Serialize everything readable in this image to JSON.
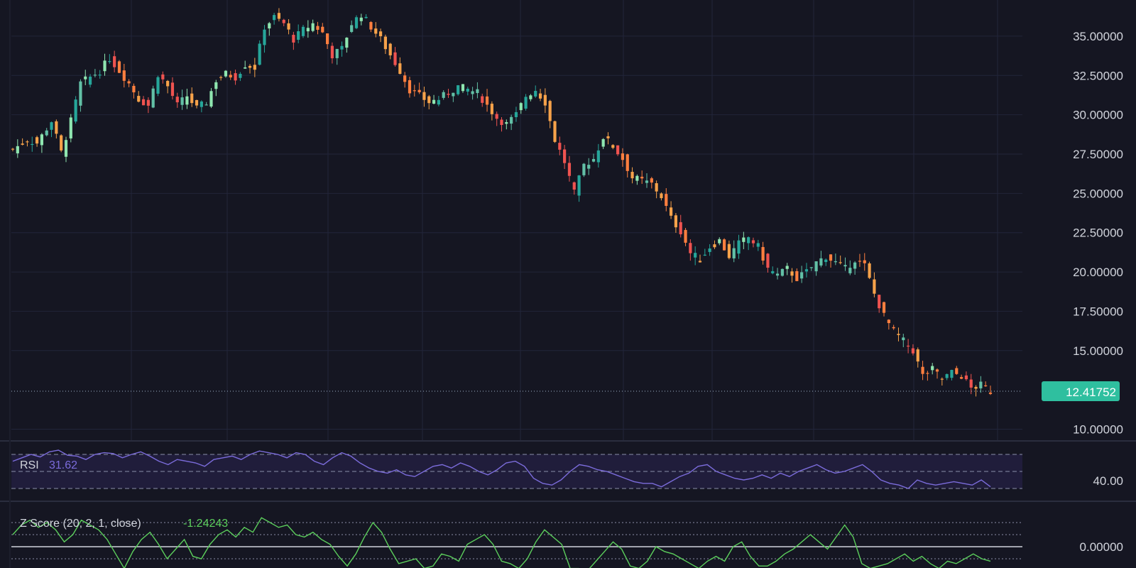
{
  "chart_data": [
    {
      "type": "candlestick",
      "title": "",
      "y_axis": {
        "ticks": [
          "10.00000",
          "15.00000",
          "17.50000",
          "20.00000",
          "22.50000",
          "25.00000",
          "27.50000",
          "30.00000",
          "32.50000",
          "35.00000"
        ],
        "range": [
          9.3,
          37.3
        ],
        "position": "right"
      },
      "last_price": "12.41752",
      "last_price_value": 12.41752,
      "grid": true,
      "colors": {
        "up": "#26a69a",
        "up_light": "#8fe6b0",
        "down": "#ff7f3f",
        "down_alt": "#ef5350",
        "wick": "#ff9966",
        "background": "#151622",
        "grid": "#22253a",
        "last_price_badge": "#2fbf9f"
      },
      "close_path": [
        [
          0,
          27.8
        ],
        [
          3,
          28.4
        ],
        [
          5,
          28.2
        ],
        [
          8,
          29.6
        ],
        [
          10,
          27.6
        ],
        [
          12,
          29.6
        ],
        [
          14,
          32.0
        ],
        [
          16,
          32.4
        ],
        [
          18,
          32.8
        ],
        [
          20,
          33.6
        ],
        [
          22,
          32.8
        ],
        [
          24,
          32.0
        ],
        [
          26,
          31.0
        ],
        [
          28,
          30.6
        ],
        [
          30,
          32.6
        ],
        [
          32,
          31.8
        ],
        [
          34,
          30.6
        ],
        [
          36,
          31.2
        ],
        [
          38,
          30.4
        ],
        [
          40,
          30.8
        ],
        [
          42,
          32.2
        ],
        [
          44,
          32.6
        ],
        [
          46,
          32.4
        ],
        [
          48,
          33.2
        ],
        [
          50,
          33.0
        ],
        [
          52,
          35.6
        ],
        [
          54,
          36.2
        ],
        [
          56,
          35.8
        ],
        [
          58,
          34.8
        ],
        [
          60,
          35.4
        ],
        [
          62,
          35.8
        ],
        [
          64,
          35.2
        ],
        [
          66,
          33.8
        ],
        [
          68,
          34.2
        ],
        [
          70,
          35.8
        ],
        [
          72,
          36.4
        ],
        [
          74,
          35.6
        ],
        [
          76,
          34.8
        ],
        [
          78,
          33.8
        ],
        [
          80,
          32.8
        ],
        [
          82,
          31.6
        ],
        [
          84,
          31.2
        ],
        [
          86,
          30.8
        ],
        [
          88,
          31.0
        ],
        [
          90,
          31.4
        ],
        [
          92,
          31.8
        ],
        [
          94,
          31.6
        ],
        [
          96,
          31.4
        ],
        [
          98,
          30.6
        ],
        [
          100,
          29.8
        ],
        [
          102,
          29.4
        ],
        [
          104,
          30.0
        ],
        [
          106,
          31.2
        ],
        [
          108,
          31.6
        ],
        [
          110,
          30.8
        ],
        [
          112,
          28.4
        ],
        [
          114,
          27.0
        ],
        [
          116,
          25.0
        ],
        [
          118,
          26.8
        ],
        [
          120,
          27.2
        ],
        [
          122,
          28.6
        ],
        [
          124,
          28.0
        ],
        [
          126,
          27.2
        ],
        [
          128,
          26.0
        ],
        [
          130,
          25.8
        ],
        [
          132,
          25.6
        ],
        [
          134,
          24.8
        ],
        [
          136,
          23.4
        ],
        [
          138,
          22.6
        ],
        [
          140,
          21.2
        ],
        [
          142,
          20.8
        ],
        [
          144,
          21.6
        ],
        [
          146,
          22.0
        ],
        [
          148,
          21.0
        ],
        [
          150,
          21.8
        ],
        [
          152,
          22.2
        ],
        [
          154,
          21.6
        ],
        [
          156,
          20.2
        ],
        [
          158,
          19.8
        ],
        [
          160,
          20.2
        ],
        [
          162,
          19.6
        ],
        [
          164,
          20.0
        ],
        [
          166,
          20.6
        ],
        [
          168,
          21.0
        ],
        [
          170,
          20.6
        ],
        [
          172,
          20.2
        ],
        [
          174,
          20.8
        ],
        [
          176,
          20.4
        ],
        [
          178,
          18.6
        ],
        [
          180,
          17.2
        ],
        [
          182,
          16.2
        ],
        [
          184,
          15.6
        ],
        [
          186,
          15.0
        ],
        [
          188,
          13.4
        ],
        [
          190,
          13.8
        ],
        [
          192,
          13.2
        ],
        [
          194,
          13.6
        ],
        [
          196,
          13.4
        ],
        [
          198,
          12.6
        ],
        [
          200,
          12.8
        ],
        [
          202,
          12.4
        ]
      ]
    },
    {
      "type": "line",
      "name": "RSI",
      "label": "RSI",
      "value_label": "31.62",
      "y_axis": {
        "ticks": [
          "40.00"
        ]
      },
      "bands": [
        70,
        50,
        30
      ],
      "colors": {
        "line": "#7b6cdb",
        "band_fill": "#2a2550",
        "label": "#d1d4dc",
        "value": "#7b6cdb"
      },
      "values": [
        62,
        66,
        70,
        67,
        73,
        75,
        69,
        68,
        64,
        70,
        72,
        71,
        66,
        70,
        73,
        68,
        62,
        58,
        64,
        62,
        60,
        56,
        64,
        66,
        68,
        64,
        70,
        74,
        72,
        70,
        66,
        72,
        70,
        62,
        58,
        66,
        72,
        68,
        60,
        54,
        50,
        48,
        52,
        46,
        44,
        50,
        56,
        58,
        54,
        60,
        56,
        50,
        46,
        52,
        60,
        62,
        56,
        42,
        36,
        34,
        40,
        50,
        58,
        56,
        52,
        50,
        46,
        42,
        38,
        36,
        36,
        32,
        38,
        44,
        48,
        56,
        58,
        50,
        46,
        42,
        40,
        42,
        46,
        42,
        48,
        44,
        50,
        54,
        58,
        52,
        48,
        50,
        54,
        58,
        50,
        40,
        36,
        34,
        30,
        40,
        36,
        34,
        36,
        38,
        36,
        34,
        40,
        32
      ]
    },
    {
      "type": "line",
      "name": "Z Score",
      "label": "Z Score (20, 2, 1, close)",
      "value_label": "-1.24243",
      "y_axis": {
        "ticks": [
          "0.00000"
        ]
      },
      "levels": [
        2,
        1,
        0,
        -1
      ],
      "colors": {
        "line": "#5ccf5c",
        "label": "#d1d4dc",
        "value": "#5ccf5c",
        "zero_line": "#d1d4dc"
      },
      "values": [
        1.0,
        1.8,
        2.2,
        1.6,
        2.0,
        1.4,
        0.4,
        1.0,
        2.2,
        1.8,
        1.4,
        0.6,
        -0.6,
        -1.8,
        -0.4,
        0.6,
        1.2,
        0.2,
        -1.0,
        -0.2,
        0.6,
        -0.8,
        -1.0,
        0.2,
        1.0,
        1.4,
        0.8,
        1.6,
        1.2,
        2.4,
        2.0,
        1.6,
        1.8,
        1.0,
        0.8,
        1.2,
        0.6,
        0.2,
        -0.8,
        -1.6,
        -0.6,
        0.8,
        2.0,
        1.2,
        -0.2,
        -1.4,
        -1.2,
        -1.0,
        -1.8,
        -1.6,
        -0.6,
        -0.8,
        -1.2,
        0.2,
        0.6,
        1.0,
        0.2,
        -1.2,
        -1.4,
        -1.8,
        -1.0,
        0.4,
        1.4,
        0.8,
        0.2,
        -1.8,
        -1.8,
        -2.0,
        -1.2,
        -0.4,
        0.4,
        -0.2,
        -1.6,
        -1.8,
        -1.2,
        0.0,
        -0.4,
        -0.6,
        -1.0,
        -1.4,
        -1.8,
        -1.2,
        -0.8,
        -1.2,
        0.0,
        0.4,
        -0.8,
        -1.6,
        -1.6,
        -1.2,
        -0.6,
        -0.2,
        0.4,
        1.0,
        0.4,
        -0.2,
        0.8,
        1.8,
        0.8,
        -1.4,
        -1.8,
        -1.6,
        -1.4,
        -1.0,
        -0.6,
        -1.2,
        -0.8,
        -1.4,
        -1.8,
        -1.2,
        -1.4,
        -1.0,
        -0.6,
        -1.0,
        -1.2
      ]
    }
  ]
}
